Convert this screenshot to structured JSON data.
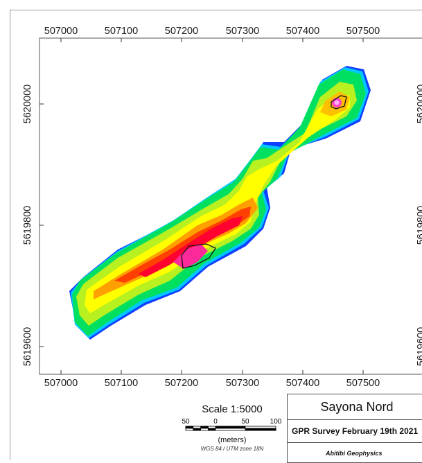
{
  "map": {
    "top_x_labels": [
      "507000",
      "507100",
      "507200",
      "507300",
      "507400",
      "507500"
    ],
    "bottom_x_labels": [
      "507000",
      "507100",
      "507200",
      "507300",
      "507400",
      "507500"
    ],
    "left_y_labels": [
      "5620000",
      "5619800",
      "5619600"
    ]
  },
  "scale": {
    "title": "Scale 1:5000",
    "bar_labels": [
      "50",
      "0",
      "50",
      "100"
    ],
    "units": "(meters)",
    "projection": "WGS 84 / UTM zone 18N"
  },
  "title_block": {
    "name": "Sayona Nord",
    "survey": "GPR Survey February 19th 2021",
    "company": "Abitibi Geophysics"
  },
  "colors": {
    "ramp": [
      "#0a2aff",
      "#00c8ff",
      "#00e060",
      "#aaf020",
      "#ffff00",
      "#ffb000",
      "#ff5000",
      "#ff0030",
      "#ff2aa0",
      "#ff80ff"
    ]
  }
}
